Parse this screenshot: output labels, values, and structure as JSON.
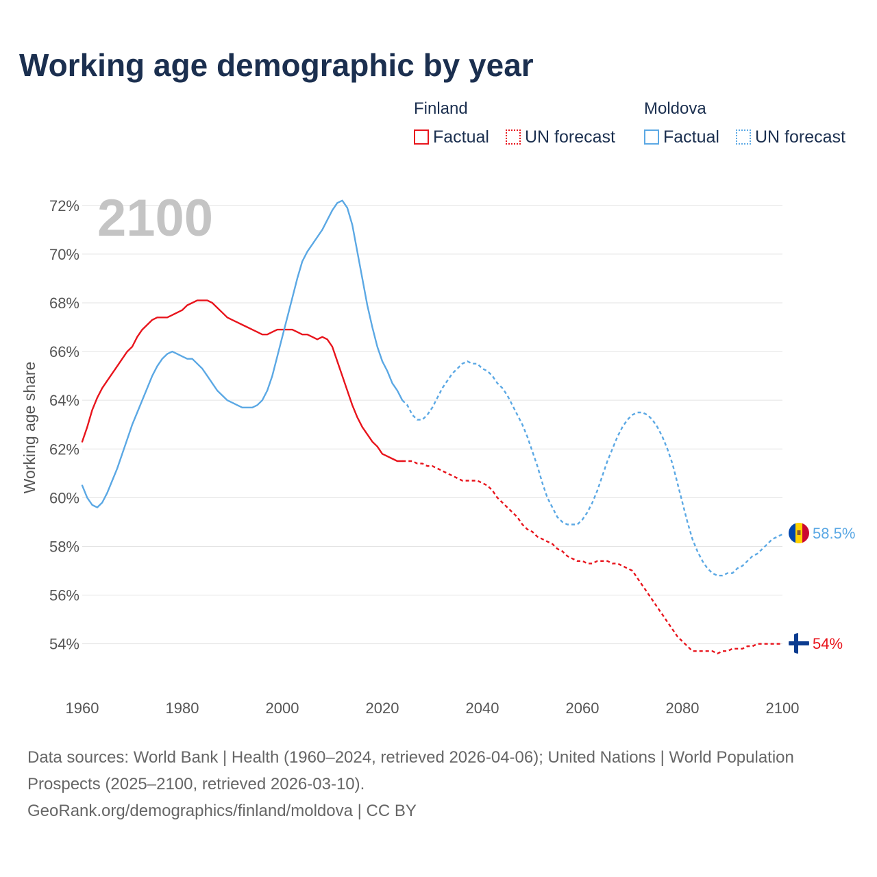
{
  "title": "Working age demographic by year",
  "legend": {
    "groups": [
      {
        "name": "Finland",
        "color": "#e8141c",
        "items": [
          {
            "label": "Factual",
            "style": "solid"
          },
          {
            "label": "UN forecast",
            "style": "dotted"
          }
        ]
      },
      {
        "name": "Moldova",
        "color": "#5ba8e4",
        "items": [
          {
            "label": "Factual",
            "style": "solid"
          },
          {
            "label": "UN forecast",
            "style": "dotted"
          }
        ]
      }
    ]
  },
  "sources": {
    "line1": "Data sources: World Bank | Health (1960–2024, retrieved 2026-04-06); United Nations | World Population Prospects (2025–2100, retrieved 2026-03-10).",
    "line2": "GeoRank.org/demographics/finland/moldova | CC BY"
  },
  "chart_data": {
    "type": "line",
    "title": "Working age demographic by year",
    "xlabel": "",
    "ylabel": "Working age share",
    "year_label": "2100",
    "xlim": [
      1960,
      2100
    ],
    "ylim": [
      52.5,
      72.5
    ],
    "xticks": [
      1960,
      1980,
      2000,
      2020,
      2040,
      2060,
      2080,
      2100
    ],
    "yticks": [
      54,
      56,
      58,
      60,
      62,
      64,
      66,
      68,
      70,
      72
    ],
    "ytick_format": "{v}%",
    "grid": true,
    "factual_end_year": 2024,
    "series": [
      {
        "name": "Finland",
        "color": "#e8141c",
        "end_label": "54%",
        "flag": "finland",
        "points": [
          [
            1960,
            62.3
          ],
          [
            1961,
            62.9
          ],
          [
            1962,
            63.6
          ],
          [
            1963,
            64.1
          ],
          [
            1964,
            64.5
          ],
          [
            1965,
            64.8
          ],
          [
            1966,
            65.1
          ],
          [
            1967,
            65.4
          ],
          [
            1968,
            65.7
          ],
          [
            1969,
            66.0
          ],
          [
            1970,
            66.2
          ],
          [
            1971,
            66.6
          ],
          [
            1972,
            66.9
          ],
          [
            1973,
            67.1
          ],
          [
            1974,
            67.3
          ],
          [
            1975,
            67.4
          ],
          [
            1976,
            67.4
          ],
          [
            1977,
            67.4
          ],
          [
            1978,
            67.5
          ],
          [
            1979,
            67.6
          ],
          [
            1980,
            67.7
          ],
          [
            1981,
            67.9
          ],
          [
            1982,
            68.0
          ],
          [
            1983,
            68.1
          ],
          [
            1984,
            68.1
          ],
          [
            1985,
            68.1
          ],
          [
            1986,
            68.0
          ],
          [
            1987,
            67.8
          ],
          [
            1988,
            67.6
          ],
          [
            1989,
            67.4
          ],
          [
            1990,
            67.3
          ],
          [
            1991,
            67.2
          ],
          [
            1992,
            67.1
          ],
          [
            1993,
            67.0
          ],
          [
            1994,
            66.9
          ],
          [
            1995,
            66.8
          ],
          [
            1996,
            66.7
          ],
          [
            1997,
            66.7
          ],
          [
            1998,
            66.8
          ],
          [
            1999,
            66.9
          ],
          [
            2000,
            66.9
          ],
          [
            2001,
            66.9
          ],
          [
            2002,
            66.9
          ],
          [
            2003,
            66.8
          ],
          [
            2004,
            66.7
          ],
          [
            2005,
            66.7
          ],
          [
            2006,
            66.6
          ],
          [
            2007,
            66.5
          ],
          [
            2008,
            66.6
          ],
          [
            2009,
            66.5
          ],
          [
            2010,
            66.2
          ],
          [
            2011,
            65.6
          ],
          [
            2012,
            65.0
          ],
          [
            2013,
            64.4
          ],
          [
            2014,
            63.8
          ],
          [
            2015,
            63.3
          ],
          [
            2016,
            62.9
          ],
          [
            2017,
            62.6
          ],
          [
            2018,
            62.3
          ],
          [
            2019,
            62.1
          ],
          [
            2020,
            61.8
          ],
          [
            2021,
            61.7
          ],
          [
            2022,
            61.6
          ],
          [
            2023,
            61.5
          ],
          [
            2024,
            61.5
          ],
          [
            2025,
            61.5
          ],
          [
            2026,
            61.5
          ],
          [
            2027,
            61.4
          ],
          [
            2028,
            61.4
          ],
          [
            2029,
            61.3
          ],
          [
            2030,
            61.3
          ],
          [
            2031,
            61.2
          ],
          [
            2032,
            61.1
          ],
          [
            2033,
            61.0
          ],
          [
            2034,
            60.9
          ],
          [
            2035,
            60.8
          ],
          [
            2036,
            60.7
          ],
          [
            2037,
            60.7
          ],
          [
            2038,
            60.7
          ],
          [
            2039,
            60.7
          ],
          [
            2040,
            60.6
          ],
          [
            2041,
            60.5
          ],
          [
            2042,
            60.3
          ],
          [
            2043,
            60.0
          ],
          [
            2044,
            59.8
          ],
          [
            2045,
            59.6
          ],
          [
            2046,
            59.4
          ],
          [
            2047,
            59.2
          ],
          [
            2048,
            58.9
          ],
          [
            2049,
            58.7
          ],
          [
            2050,
            58.6
          ],
          [
            2051,
            58.4
          ],
          [
            2052,
            58.3
          ],
          [
            2053,
            58.2
          ],
          [
            2054,
            58.1
          ],
          [
            2055,
            57.9
          ],
          [
            2056,
            57.8
          ],
          [
            2057,
            57.6
          ],
          [
            2058,
            57.5
          ],
          [
            2059,
            57.4
          ],
          [
            2060,
            57.4
          ],
          [
            2061,
            57.3
          ],
          [
            2062,
            57.3
          ],
          [
            2063,
            57.4
          ],
          [
            2064,
            57.4
          ],
          [
            2065,
            57.4
          ],
          [
            2066,
            57.3
          ],
          [
            2067,
            57.3
          ],
          [
            2068,
            57.2
          ],
          [
            2069,
            57.1
          ],
          [
            2070,
            57.0
          ],
          [
            2071,
            56.7
          ],
          [
            2072,
            56.4
          ],
          [
            2073,
            56.1
          ],
          [
            2074,
            55.8
          ],
          [
            2075,
            55.5
          ],
          [
            2076,
            55.2
          ],
          [
            2077,
            54.9
          ],
          [
            2078,
            54.6
          ],
          [
            2079,
            54.3
          ],
          [
            2080,
            54.1
          ],
          [
            2081,
            53.9
          ],
          [
            2082,
            53.7
          ],
          [
            2083,
            53.7
          ],
          [
            2084,
            53.7
          ],
          [
            2085,
            53.7
          ],
          [
            2086,
            53.7
          ],
          [
            2087,
            53.6
          ],
          [
            2088,
            53.7
          ],
          [
            2089,
            53.7
          ],
          [
            2090,
            53.8
          ],
          [
            2091,
            53.8
          ],
          [
            2092,
            53.8
          ],
          [
            2093,
            53.9
          ],
          [
            2094,
            53.9
          ],
          [
            2095,
            54.0
          ],
          [
            2096,
            54.0
          ],
          [
            2097,
            54.0
          ],
          [
            2098,
            54.0
          ],
          [
            2099,
            54.0
          ],
          [
            2100,
            54.0
          ]
        ]
      },
      {
        "name": "Moldova",
        "color": "#5ba8e4",
        "end_label": "58.5%",
        "flag": "moldova",
        "points": [
          [
            1960,
            60.5
          ],
          [
            1961,
            60.0
          ],
          [
            1962,
            59.7
          ],
          [
            1963,
            59.6
          ],
          [
            1964,
            59.8
          ],
          [
            1965,
            60.2
          ],
          [
            1966,
            60.7
          ],
          [
            1967,
            61.2
          ],
          [
            1968,
            61.8
          ],
          [
            1969,
            62.4
          ],
          [
            1970,
            63.0
          ],
          [
            1971,
            63.5
          ],
          [
            1972,
            64.0
          ],
          [
            1973,
            64.5
          ],
          [
            1974,
            65.0
          ],
          [
            1975,
            65.4
          ],
          [
            1976,
            65.7
          ],
          [
            1977,
            65.9
          ],
          [
            1978,
            66.0
          ],
          [
            1979,
            65.9
          ],
          [
            1980,
            65.8
          ],
          [
            1981,
            65.7
          ],
          [
            1982,
            65.7
          ],
          [
            1983,
            65.5
          ],
          [
            1984,
            65.3
          ],
          [
            1985,
            65.0
          ],
          [
            1986,
            64.7
          ],
          [
            1987,
            64.4
          ],
          [
            1988,
            64.2
          ],
          [
            1989,
            64.0
          ],
          [
            1990,
            63.9
          ],
          [
            1991,
            63.8
          ],
          [
            1992,
            63.7
          ],
          [
            1993,
            63.7
          ],
          [
            1994,
            63.7
          ],
          [
            1995,
            63.8
          ],
          [
            1996,
            64.0
          ],
          [
            1997,
            64.4
          ],
          [
            1998,
            65.0
          ],
          [
            1999,
            65.8
          ],
          [
            2000,
            66.6
          ],
          [
            2001,
            67.4
          ],
          [
            2002,
            68.2
          ],
          [
            2003,
            69.0
          ],
          [
            2004,
            69.7
          ],
          [
            2005,
            70.1
          ],
          [
            2006,
            70.4
          ],
          [
            2007,
            70.7
          ],
          [
            2008,
            71.0
          ],
          [
            2009,
            71.4
          ],
          [
            2010,
            71.8
          ],
          [
            2011,
            72.1
          ],
          [
            2012,
            72.2
          ],
          [
            2013,
            71.9
          ],
          [
            2014,
            71.2
          ],
          [
            2015,
            70.1
          ],
          [
            2016,
            69.0
          ],
          [
            2017,
            67.9
          ],
          [
            2018,
            67.0
          ],
          [
            2019,
            66.2
          ],
          [
            2020,
            65.6
          ],
          [
            2021,
            65.2
          ],
          [
            2022,
            64.7
          ],
          [
            2023,
            64.4
          ],
          [
            2024,
            64.0
          ],
          [
            2025,
            63.8
          ],
          [
            2026,
            63.4
          ],
          [
            2027,
            63.2
          ],
          [
            2028,
            63.2
          ],
          [
            2029,
            63.4
          ],
          [
            2030,
            63.7
          ],
          [
            2031,
            64.1
          ],
          [
            2032,
            64.5
          ],
          [
            2033,
            64.8
          ],
          [
            2034,
            65.1
          ],
          [
            2035,
            65.3
          ],
          [
            2036,
            65.5
          ],
          [
            2037,
            65.6
          ],
          [
            2038,
            65.5
          ],
          [
            2039,
            65.5
          ],
          [
            2040,
            65.3
          ],
          [
            2041,
            65.2
          ],
          [
            2042,
            65.0
          ],
          [
            2043,
            64.7
          ],
          [
            2044,
            64.5
          ],
          [
            2045,
            64.2
          ],
          [
            2046,
            63.8
          ],
          [
            2047,
            63.4
          ],
          [
            2048,
            63.0
          ],
          [
            2049,
            62.5
          ],
          [
            2050,
            61.9
          ],
          [
            2051,
            61.3
          ],
          [
            2052,
            60.6
          ],
          [
            2053,
            60.0
          ],
          [
            2054,
            59.6
          ],
          [
            2055,
            59.2
          ],
          [
            2056,
            59.0
          ],
          [
            2057,
            58.9
          ],
          [
            2058,
            58.9
          ],
          [
            2059,
            58.9
          ],
          [
            2060,
            59.1
          ],
          [
            2061,
            59.4
          ],
          [
            2062,
            59.8
          ],
          [
            2063,
            60.3
          ],
          [
            2064,
            60.9
          ],
          [
            2065,
            61.5
          ],
          [
            2066,
            62.0
          ],
          [
            2067,
            62.5
          ],
          [
            2068,
            62.9
          ],
          [
            2069,
            63.2
          ],
          [
            2070,
            63.4
          ],
          [
            2071,
            63.5
          ],
          [
            2072,
            63.5
          ],
          [
            2073,
            63.4
          ],
          [
            2074,
            63.2
          ],
          [
            2075,
            62.9
          ],
          [
            2076,
            62.5
          ],
          [
            2077,
            62.0
          ],
          [
            2078,
            61.4
          ],
          [
            2079,
            60.6
          ],
          [
            2080,
            59.8
          ],
          [
            2081,
            59.0
          ],
          [
            2082,
            58.3
          ],
          [
            2083,
            57.8
          ],
          [
            2084,
            57.4
          ],
          [
            2085,
            57.1
          ],
          [
            2086,
            56.9
          ],
          [
            2087,
            56.8
          ],
          [
            2088,
            56.8
          ],
          [
            2089,
            56.9
          ],
          [
            2090,
            56.9
          ],
          [
            2091,
            57.1
          ],
          [
            2092,
            57.2
          ],
          [
            2093,
            57.4
          ],
          [
            2094,
            57.6
          ],
          [
            2095,
            57.7
          ],
          [
            2096,
            57.9
          ],
          [
            2097,
            58.1
          ],
          [
            2098,
            58.3
          ],
          [
            2099,
            58.4
          ],
          [
            2100,
            58.5
          ]
        ]
      }
    ]
  }
}
